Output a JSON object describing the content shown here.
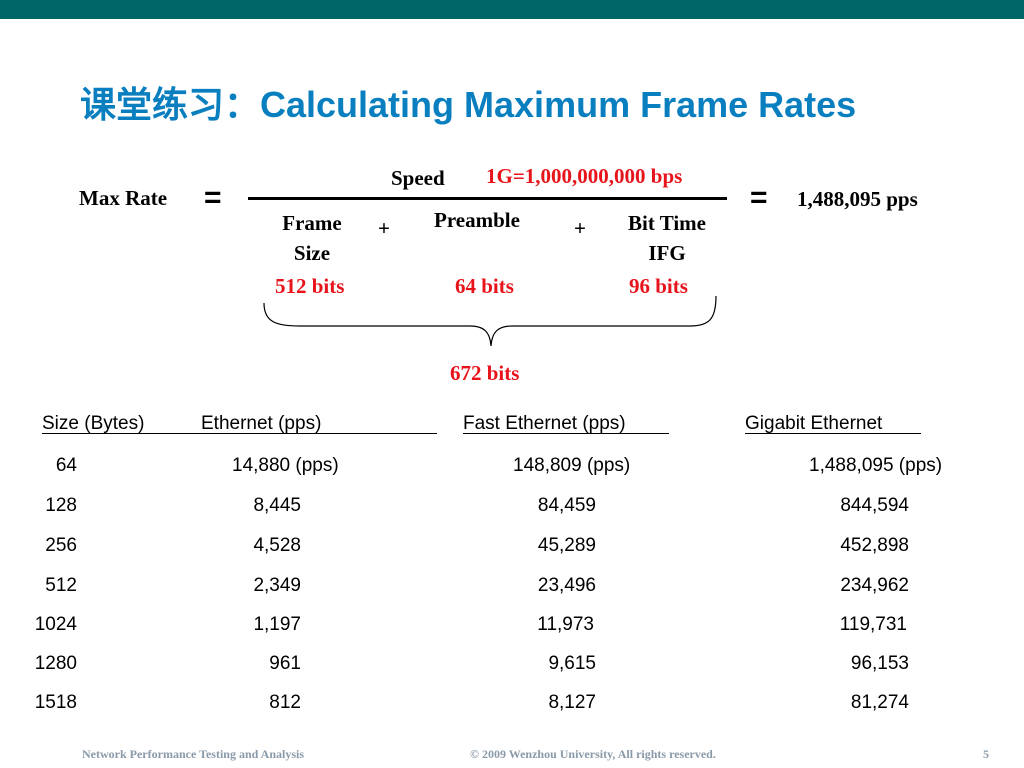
{
  "slide": {
    "title": "课堂练习：Calculating Maximum Frame Rates",
    "colors": {
      "topbar": "#006666",
      "title": "#0a7fbf",
      "highlight": "#e8141c",
      "footer": "#8a9aa8"
    }
  },
  "formula": {
    "lhs": "Max Rate",
    "equals": "=",
    "numerator": "Speed",
    "speed_note": "1G=1,000,000,000 bps",
    "plus": "+",
    "term1_line1": "Frame",
    "term1_line2": "Size",
    "term2": "Preamble",
    "term3_line1": "Bit Time",
    "term3_line2": "IFG",
    "term1_bits": "512 bits",
    "term2_bits": "64 bits",
    "term3_bits": "96 bits",
    "total_bits": "672 bits",
    "result": "1,488,095 pps"
  },
  "table": {
    "headers": [
      "Size (Bytes)",
      "Ethernet (pps)",
      "Fast Ethernet (pps)",
      "Gigabit Ethernet"
    ],
    "rows": [
      [
        "64",
        "14,880 (pps)",
        "148,809 (pps)",
        "1,488,095 (pps)"
      ],
      [
        "128",
        "8,445",
        "84,459",
        "844,594"
      ],
      [
        "256",
        "4,528",
        "45,289",
        "452,898"
      ],
      [
        "512",
        "2,349",
        "23,496",
        "234,962"
      ],
      [
        "1024",
        "1,197",
        "11,973",
        "119,731"
      ],
      [
        "1280",
        "961",
        "9,615",
        "96,153"
      ],
      [
        "1518",
        "812",
        "8,127",
        "81,274"
      ]
    ]
  },
  "footer": {
    "left": "Network Performance Testing and Analysis",
    "center": "© 2009  Wenzhou University, All rights reserved.",
    "page": "5"
  }
}
